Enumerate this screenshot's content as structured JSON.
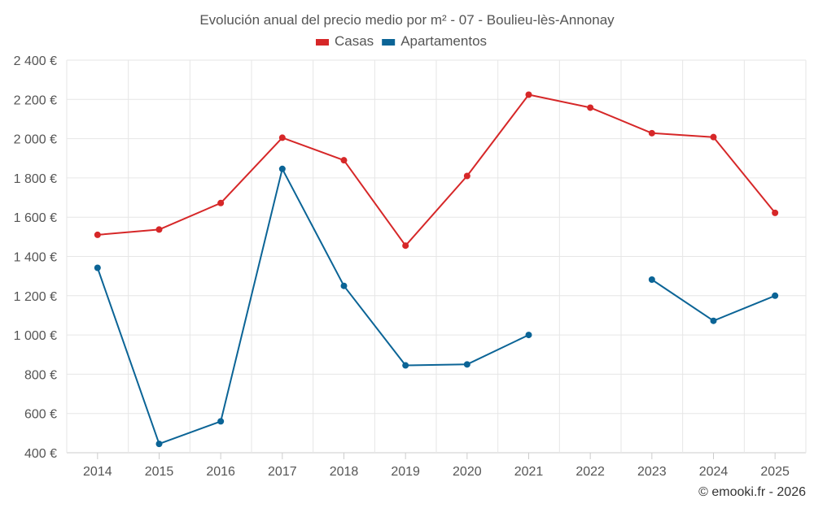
{
  "chart_data": {
    "type": "line",
    "title": "Evolución anual del precio medio por m² - 07 - Boulieu-lès-Annonay",
    "categories": [
      "2014",
      "2015",
      "2016",
      "2017",
      "2018",
      "2019",
      "2020",
      "2021",
      "2022",
      "2023",
      "2024",
      "2025"
    ],
    "series": [
      {
        "name": "Casas",
        "color": "#d62728",
        "values": [
          1510,
          1537,
          1672,
          2005,
          1890,
          1455,
          1810,
          2224,
          2158,
          2028,
          2008,
          1622
        ]
      },
      {
        "name": "Apartamentos",
        "color": "#0b6496",
        "values": [
          1342,
          445,
          560,
          1846,
          1250,
          845,
          850,
          1000,
          null,
          1282,
          1072,
          1200
        ]
      }
    ],
    "ylim": [
      400,
      2400
    ],
    "yticks": [
      400,
      600,
      800,
      1000,
      1200,
      1400,
      1600,
      1800,
      2000,
      2200,
      2400
    ],
    "ytick_labels": [
      "400 €",
      "600 €",
      "800 €",
      "1 000 €",
      "1 200 €",
      "1 400 €",
      "1 600 €",
      "1 800 €",
      "2 000 €",
      "2 200 €",
      "2 400 €"
    ],
    "xlabel": "",
    "ylabel": "",
    "grid": true,
    "legend_position": "top-center"
  },
  "credit": "© emooki.fr - 2026"
}
